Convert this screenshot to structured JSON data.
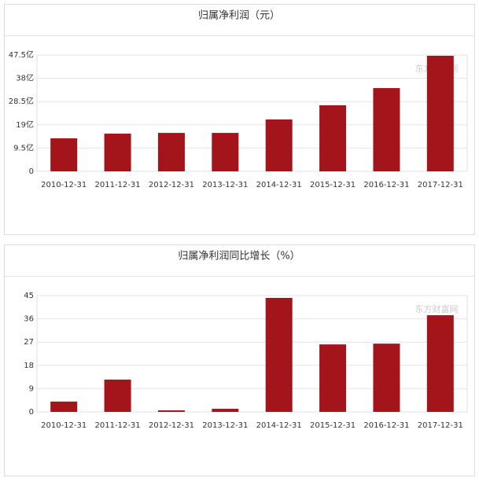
{
  "chart_data": [
    {
      "type": "bar",
      "title": "归属净利润（元）",
      "watermark": "东方财富网",
      "categories": [
        "2010-12-31",
        "2011-12-31",
        "2012-12-31",
        "2013-12-31",
        "2014-12-31",
        "2015-12-31",
        "2016-12-31",
        "2017-12-31"
      ],
      "values": [
        13.5,
        15.4,
        15.7,
        15.7,
        21.2,
        27.0,
        34.0,
        47.2
      ],
      "color": "#a3141b",
      "ylim": [
        0,
        47.5
      ],
      "yticks": [
        0,
        {
          "value": 9.5,
          "label": "9.5亿"
        },
        {
          "value": 19,
          "label": "19亿"
        },
        {
          "value": 28.5,
          "label": "28.5亿"
        },
        {
          "value": 38,
          "label": "38亿"
        },
        {
          "value": 47.5,
          "label": "47.5亿"
        }
      ],
      "grid": true
    },
    {
      "type": "bar",
      "title": "归属净利润同比增长（%）",
      "watermark": "东方财富网",
      "categories": [
        "2010-12-31",
        "2011-12-31",
        "2012-12-31",
        "2013-12-31",
        "2014-12-31",
        "2015-12-31",
        "2016-12-31",
        "2017-12-31"
      ],
      "values": [
        4.0,
        12.5,
        0.6,
        1.2,
        44.1,
        26.1,
        26.4,
        37.4
      ],
      "color": "#a3141b",
      "ylim": [
        0,
        45
      ],
      "yticks": [
        0,
        9,
        18,
        27,
        36,
        45
      ],
      "grid": true
    }
  ]
}
